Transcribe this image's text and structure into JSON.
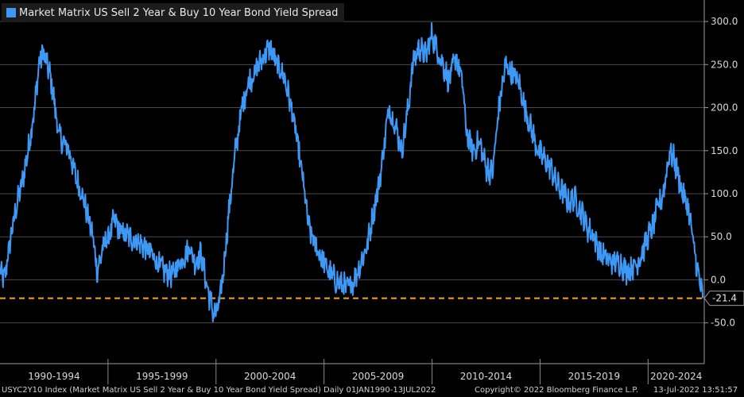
{
  "chart_data": {
    "type": "line",
    "title": "Market Matrix US Sell 2 Year & Buy 10 Year Bond Yield Spread",
    "ylim": [
      -90,
      325
    ],
    "xlim": [
      1990.0,
      2022.6
    ],
    "y_ticks": [
      300.0,
      250.0,
      200.0,
      150.0,
      100.0,
      50.0,
      0.0,
      -50.0
    ],
    "y_tick_labels": [
      "300.0",
      "250.0",
      "200.0",
      "150.0",
      "100.0",
      "50.0",
      "0.0",
      "-50.0"
    ],
    "period_labels": [
      {
        "label": "1990-1994",
        "start": 1990.0,
        "end": 1995.0
      },
      {
        "label": "1995-1999",
        "start": 1995.0,
        "end": 2000.0
      },
      {
        "label": "2000-2004",
        "start": 2000.0,
        "end": 2005.0
      },
      {
        "label": "2005-2009",
        "start": 2005.0,
        "end": 2010.0
      },
      {
        "label": "2010-2014",
        "start": 2010.0,
        "end": 2015.0
      },
      {
        "label": "2015-2019",
        "start": 2015.0,
        "end": 2020.0
      },
      {
        "label": "2020-2024",
        "start": 2020.0,
        "end": 2022.6
      }
    ],
    "reference_line": {
      "value": -21.4,
      "label": "-21.4",
      "color": "#f5a623"
    },
    "series": [
      {
        "name": "USYC2Y10 Index",
        "color": "#3d99f5",
        "x": [
          1990.0,
          1990.2,
          1990.5,
          1990.8,
          1991.0,
          1991.3,
          1991.6,
          1991.8,
          1992.0,
          1992.3,
          1992.5,
          1992.7,
          1992.9,
          1993.2,
          1993.5,
          1993.8,
          1994.0,
          1994.3,
          1994.5,
          1994.8,
          1995.0,
          1995.1,
          1995.3,
          1995.6,
          1996.0,
          1996.3,
          1996.6,
          1997.0,
          1997.3,
          1997.6,
          1998.0,
          1998.3,
          1998.6,
          1998.8,
          1999.0,
          1999.3,
          1999.6,
          1999.9,
          2000.1,
          2000.3,
          2000.6,
          2000.9,
          2001.2,
          2001.5,
          2001.8,
          2002.2,
          2002.5,
          2002.8,
          2003.1,
          2003.4,
          2003.7,
          2004.0,
          2004.3,
          2004.6,
          2004.9,
          2005.2,
          2005.5,
          2005.8,
          2006.1,
          2006.4,
          2006.7,
          2007.0,
          2007.3,
          2007.6,
          2007.8,
          2008.0,
          2008.3,
          2008.6,
          2008.9,
          2009.1,
          2009.4,
          2009.7,
          2010.0,
          2010.2,
          2010.5,
          2010.8,
          2011.1,
          2011.4,
          2011.6,
          2011.9,
          2012.2,
          2012.5,
          2012.8,
          2013.1,
          2013.4,
          2013.7,
          2014.0,
          2014.3,
          2014.6,
          2014.9,
          2015.2,
          2015.5,
          2015.8,
          2016.1,
          2016.3,
          2016.6,
          2016.9,
          2017.2,
          2017.5,
          2017.8,
          2018.1,
          2018.4,
          2018.7,
          2019.0,
          2019.3,
          2019.5,
          2019.7,
          2020.0,
          2020.2,
          2020.4,
          2020.7,
          2021.0,
          2021.2,
          2021.4,
          2021.6,
          2021.9,
          2022.1,
          2022.3,
          2022.45,
          2022.53
        ],
        "values": [
          10,
          0,
          50,
          90,
          110,
          150,
          200,
          250,
          265,
          240,
          210,
          170,
          160,
          150,
          120,
          100,
          80,
          50,
          10,
          40,
          50,
          55,
          70,
          55,
          50,
          45,
          40,
          30,
          20,
          10,
          5,
          20,
          30,
          40,
          20,
          30,
          -10,
          -40,
          -35,
          0,
          80,
          150,
          200,
          230,
          240,
          260,
          270,
          250,
          240,
          210,
          170,
          120,
          60,
          40,
          25,
          10,
          0,
          -5,
          -10,
          0,
          20,
          40,
          80,
          120,
          160,
          200,
          180,
          150,
          200,
          250,
          270,
          260,
          285,
          270,
          250,
          230,
          260,
          230,
          170,
          150,
          160,
          130,
          125,
          200,
          250,
          240,
          230,
          200,
          175,
          150,
          140,
          130,
          110,
          100,
          90,
          95,
          80,
          60,
          50,
          30,
          25,
          20,
          20,
          10,
          15,
          20,
          30,
          50,
          60,
          80,
          100,
          150,
          140,
          120,
          100,
          80,
          40,
          10,
          -10,
          -21.4
        ],
        "last_value": -21.4
      }
    ]
  },
  "legend": {
    "label": "Market Matrix US Sell 2 Year & Buy 10 Year Bond Yield Spread"
  },
  "footer": {
    "index": "USYC2Y10 Index (Market Matrix US Sell 2 Year & Buy 10 Year Bond Yield Spread)  Daily 01JAN1990-13JUL2022",
    "copyright": "Copyright© 2022 Bloomberg Finance L.P.",
    "timestamp": "13-Jul-2022 13:51:57"
  }
}
